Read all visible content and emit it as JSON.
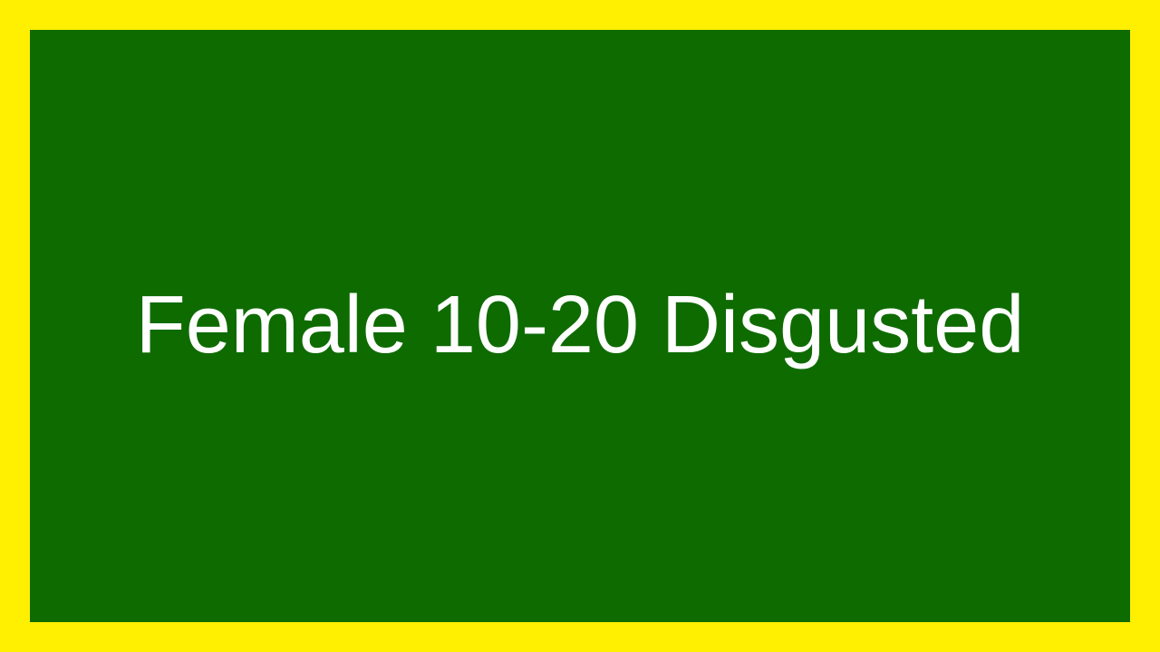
{
  "label": "Female 10-20 Disgusted",
  "colors": {
    "frame": "#ffef00",
    "panel": "#0e6b00",
    "text": "#ffffff"
  }
}
